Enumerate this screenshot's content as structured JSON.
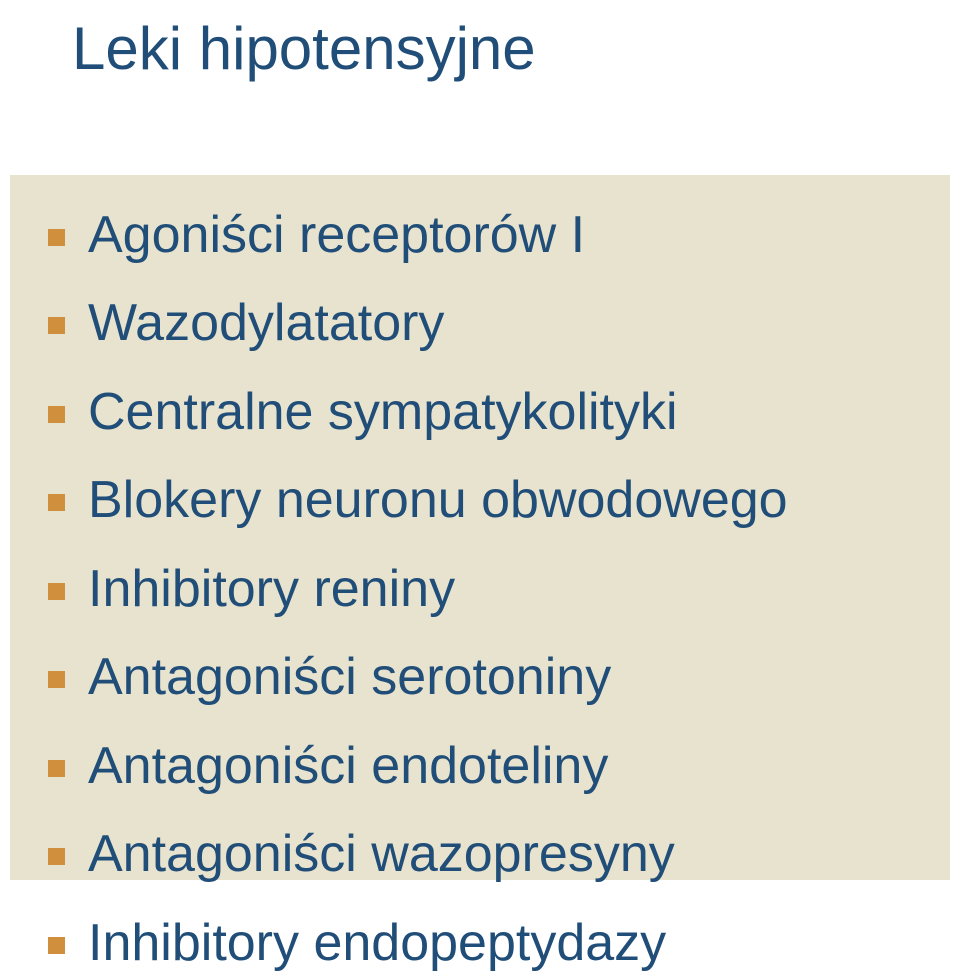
{
  "colors": {
    "text": "#204e78",
    "bullet": "#d08f3c",
    "box_bg": "#e8e3cf",
    "page_bg": "#ffffff"
  },
  "title": "Leki hipotensyjne",
  "items": [
    "Agoniści receptorów I",
    "Wazodylatatory",
    "Centralne sympatykolityki",
    "Blokery neuronu obwodowego",
    "Inhibitory reniny",
    "Antagoniści serotoniny",
    "Antagoniści endoteliny",
    "Antagoniści wazopresyny",
    "Inhibitory endopeptydazy"
  ]
}
